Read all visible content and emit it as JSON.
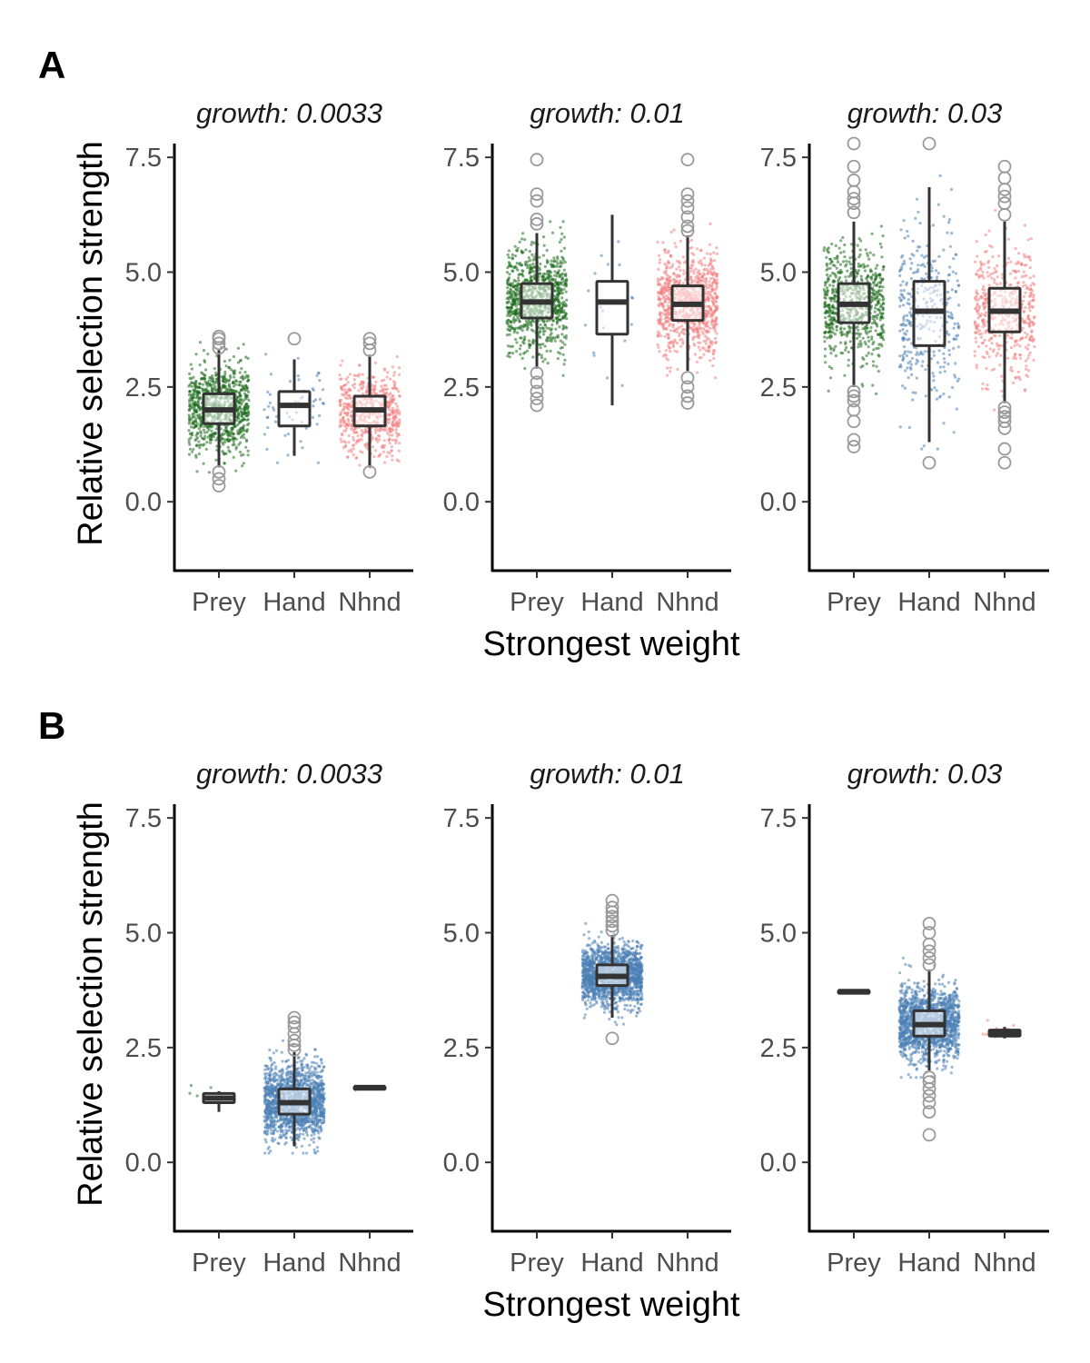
{
  "chart_data": {
    "type": "boxplot",
    "xlabel": "Strongest weight",
    "ylabel": "Relative selection strength",
    "categories": [
      "Prey",
      "Hand",
      "Nhnd"
    ],
    "ylim": [
      -1.5,
      7.8
    ],
    "yticks": [
      0.0,
      2.5,
      5.0,
      7.5
    ],
    "ytick_labels": [
      "0.0",
      "2.5",
      "5.0",
      "7.5"
    ],
    "colors": {
      "Prey": "#1b6b1b",
      "Hand": "#4a7fb5",
      "Nhnd": "#f08080"
    },
    "panels": [
      {
        "label": "A",
        "facets": [
          {
            "title": "growth: 0.0033",
            "boxes": [
              {
                "cat": "Prey",
                "min": 0.75,
                "q1": 1.7,
                "median": 2.0,
                "q3": 2.35,
                "max": 3.3,
                "n": 900,
                "outliers": [
                  0.35,
                  0.5,
                  0.65,
                  3.35,
                  3.45,
                  3.55,
                  3.6
                ]
              },
              {
                "cat": "Hand",
                "min": 1.0,
                "q1": 1.65,
                "median": 2.1,
                "q3": 2.4,
                "max": 3.1,
                "n": 60,
                "outliers": [
                  3.55
                ]
              },
              {
                "cat": "Nhnd",
                "min": 0.75,
                "q1": 1.65,
                "median": 2.0,
                "q3": 2.3,
                "max": 3.2,
                "n": 600,
                "outliers": [
                  0.65,
                  3.3,
                  3.45,
                  3.55
                ]
              }
            ]
          },
          {
            "title": "growth: 0.01",
            "boxes": [
              {
                "cat": "Prey",
                "min": 2.9,
                "q1": 4.0,
                "median": 4.35,
                "q3": 4.75,
                "max": 5.85,
                "n": 900,
                "outliers": [
                  2.1,
                  2.25,
                  2.4,
                  2.6,
                  2.8,
                  6.05,
                  6.15,
                  6.55,
                  6.7,
                  7.45
                ]
              },
              {
                "cat": "Hand",
                "min": 2.1,
                "q1": 3.65,
                "median": 4.35,
                "q3": 4.8,
                "max": 6.25,
                "n": 20,
                "outliers": []
              },
              {
                "cat": "Nhnd",
                "min": 2.85,
                "q1": 3.95,
                "median": 4.3,
                "q3": 4.7,
                "max": 5.8,
                "n": 900,
                "outliers": [
                  2.15,
                  2.3,
                  2.5,
                  2.7,
                  5.9,
                  6.0,
                  6.2,
                  6.4,
                  6.55,
                  6.7,
                  7.45
                ]
              }
            ]
          },
          {
            "title": "growth: 0.03",
            "boxes": [
              {
                "cat": "Prey",
                "min": 2.5,
                "q1": 3.9,
                "median": 4.3,
                "q3": 4.75,
                "max": 6.1,
                "n": 700,
                "outliers": [
                  1.2,
                  1.35,
                  1.75,
                  2.0,
                  2.2,
                  2.3,
                  2.4,
                  6.3,
                  6.5,
                  6.6,
                  6.75,
                  7.0,
                  7.3,
                  7.8
                ]
              },
              {
                "cat": "Hand",
                "min": 1.3,
                "q1": 3.4,
                "median": 4.15,
                "q3": 4.8,
                "max": 6.85,
                "n": 350,
                "outliers": [
                  0.85,
                  7.8
                ]
              },
              {
                "cat": "Nhnd",
                "min": 2.15,
                "q1": 3.7,
                "median": 4.15,
                "q3": 4.65,
                "max": 6.1,
                "n": 500,
                "outliers": [
                  0.85,
                  1.15,
                  1.6,
                  1.75,
                  1.85,
                  1.95,
                  2.05,
                  6.25,
                  6.5,
                  6.65,
                  6.8,
                  7.05,
                  7.3
                ]
              }
            ]
          }
        ]
      },
      {
        "label": "B",
        "facets": [
          {
            "title": "growth: 0.0033",
            "boxes": [
              {
                "cat": "Prey",
                "min": 1.1,
                "q1": 1.3,
                "median": 1.4,
                "q3": 1.5,
                "max": 1.55,
                "n": 6,
                "outliers": []
              },
              {
                "cat": "Hand",
                "min": 0.35,
                "q1": 1.05,
                "median": 1.3,
                "q3": 1.6,
                "max": 2.4,
                "n": 1500,
                "outliers": [
                  2.45,
                  2.55,
                  2.65,
                  2.8,
                  2.95,
                  3.05,
                  3.15
                ]
              },
              {
                "cat": "Nhnd",
                "min": 1.6,
                "q1": 1.6,
                "median": 1.63,
                "q3": 1.65,
                "max": 1.65,
                "n": 3,
                "outliers": []
              }
            ]
          },
          {
            "title": "growth: 0.01",
            "boxes": [
              {
                "cat": "Hand",
                "min": 3.15,
                "q1": 3.85,
                "median": 4.05,
                "q3": 4.3,
                "max": 4.95,
                "n": 1600,
                "outliers": [
                  2.7,
                  5.05,
                  5.15,
                  5.25,
                  5.35,
                  5.45,
                  5.55,
                  5.7
                ]
              }
            ]
          },
          {
            "title": "growth: 0.03",
            "boxes": [
              {
                "cat": "Prey",
                "min": 3.7,
                "q1": 3.7,
                "median": 3.72,
                "q3": 3.74,
                "max": 3.74,
                "n": 3,
                "outliers": []
              },
              {
                "cat": "Hand",
                "min": 2.0,
                "q1": 2.75,
                "median": 3.0,
                "q3": 3.3,
                "max": 4.2,
                "n": 1500,
                "outliers": [
                  0.6,
                  1.1,
                  1.3,
                  1.45,
                  1.6,
                  1.75,
                  1.85,
                  4.3,
                  4.45,
                  4.6,
                  4.75,
                  5.0,
                  5.2
                ]
              },
              {
                "cat": "Nhnd",
                "min": 2.7,
                "q1": 2.75,
                "median": 2.82,
                "q3": 2.88,
                "max": 2.95,
                "n": 8,
                "outliers": []
              }
            ]
          }
        ]
      }
    ]
  }
}
